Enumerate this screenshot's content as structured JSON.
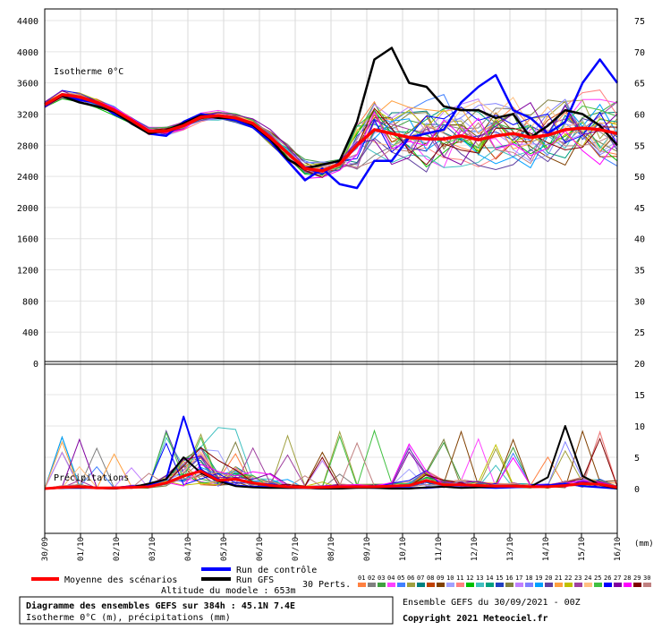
{
  "chart_data": {
    "type": "line",
    "title": "Diagramme des ensembles GEFS sur 384h : 45.1N 7.4E",
    "subtitle": "Isotherme 0°C (m), précipitations (mm)",
    "upper_panel_label": "Isotherme 0°C",
    "lower_panel_label": "Précipitations",
    "left_axis_ticks": [
      "4400",
      "4000",
      "3600",
      "3200",
      "2800",
      "2400",
      "2000",
      "1600",
      "1200",
      "800",
      "400",
      "0"
    ],
    "right_axis_ticks_upper": [
      "75",
      "70",
      "65",
      "60",
      "55",
      "50",
      "45",
      "40",
      "35",
      "30",
      "25",
      "20"
    ],
    "right_axis_ticks_lower": [
      "15",
      "10",
      "5",
      "0"
    ],
    "x_tick_labels": [
      "30/09",
      "01/10",
      "02/10",
      "03/10",
      "04/10",
      "05/10",
      "06/10",
      "07/10",
      "08/10",
      "09/10",
      "10/10",
      "11/10",
      "12/10",
      "13/10",
      "14/10",
      "15/10",
      "16/10"
    ],
    "x_unit": "(mm)",
    "ylim_isotherm": [
      0,
      4400
    ],
    "ylim_precip": [
      0,
      20
    ],
    "mean_isotherm": [
      3320,
      3450,
      3420,
      3350,
      3250,
      3120,
      2980,
      2980,
      3050,
      3160,
      3180,
      3150,
      3080,
      2900,
      2700,
      2500,
      2470,
      2560,
      2800,
      3000,
      2950,
      2900,
      2880,
      2880,
      2920,
      2870,
      2920,
      2950,
      2900,
      2930,
      3000,
      3020,
      3000,
      2950
    ],
    "control_isotherm": [
      3300,
      3450,
      3380,
      3350,
      3200,
      3100,
      2950,
      2920,
      3100,
      3200,
      3160,
      3120,
      3030,
      2850,
      2600,
      2350,
      2500,
      2300,
      2250,
      2600,
      2600,
      2900,
      2950,
      3000,
      3350,
      3550,
      3700,
      3250,
      3150,
      2950,
      3100,
      3600,
      3900,
      3600
    ],
    "gfs_isotherm": [
      3320,
      3430,
      3350,
      3300,
      3230,
      3080,
      2950,
      2990,
      3080,
      3180,
      3150,
      3150,
      3060,
      2880,
      2620,
      2500,
      2550,
      2600,
      3100,
      3900,
      4050,
      3600,
      3550,
      3300,
      3250,
      3250,
      3150,
      3200,
      2900,
      3050,
      3250,
      3200,
      3050,
      2800
    ],
    "mean_precip": [
      0,
      0.2,
      0.3,
      0.1,
      0.1,
      0.2,
      0.3,
      0.9,
      2.0,
      2.8,
      1.3,
      1.5,
      0.9,
      0.5,
      0.3,
      0.2,
      0.2,
      0.3,
      0.3,
      0.3,
      0.4,
      0.5,
      1.3,
      0.6,
      0.6,
      0.5,
      0.4,
      0.4,
      0.3,
      0.3,
      0.5,
      0.8,
      0.7,
      0.2
    ],
    "control_precip": [
      0,
      0.1,
      0.1,
      0.1,
      0,
      0.3,
      0.6,
      1.5,
      11.5,
      3.0,
      1.5,
      0.5,
      0.3,
      0.2,
      0.1,
      0.1,
      0,
      0.1,
      0.2,
      0.1,
      0.1,
      0.1,
      0.1,
      0.3,
      0.2,
      0.2,
      0.1,
      0.2,
      0.3,
      0.5,
      0.8,
      0.4,
      0.2,
      0
    ],
    "gfs_precip": [
      0,
      0.1,
      0.2,
      0.1,
      0,
      0.2,
      0.8,
      1.5,
      5.0,
      2.5,
      1.2,
      0.4,
      0.2,
      0.1,
      0.1,
      0.1,
      0,
      0,
      0.1,
      0.1,
      0,
      0,
      0.2,
      0.3,
      0.1,
      0.2,
      0.3,
      0.5,
      0.3,
      1.8,
      10.0,
      2.0,
      0.6,
      0
    ],
    "legend": {
      "mean": "Moyenne des scénarios",
      "control": "Run de contrôle",
      "gfs": "Run GFS",
      "perts_label": "30 Perts.",
      "perts": [
        "01",
        "02",
        "03",
        "04",
        "05",
        "06",
        "07",
        "08",
        "09",
        "10",
        "11",
        "12",
        "13",
        "14",
        "15",
        "16",
        "17",
        "18",
        "19",
        "20",
        "21",
        "22",
        "23",
        "24",
        "25",
        "26",
        "27",
        "28",
        "29",
        "30"
      ],
      "pert_colors": [
        "#ff8040",
        "#808080",
        "#40a040",
        "#ff40ff",
        "#4080ff",
        "#a0a040",
        "#008080",
        "#c04000",
        "#804000",
        "#a0a0ff",
        "#ff8080",
        "#00c000",
        "#40c0c0",
        "#00a080",
        "#2040c0",
        "#808040",
        "#c080ff",
        "#8080ff",
        "#00a0ff",
        "#6040a0",
        "#ffa040",
        "#c0c000",
        "#a040a0",
        "#ffc080",
        "#40c040",
        "#0000ff",
        "#8000a0",
        "#ff00ff",
        "#800000",
        "#c08080"
      ]
    },
    "colors": {
      "mean": "#ff0000",
      "control": "#0000ff",
      "gfs": "#000000"
    }
  },
  "footer": {
    "altitude": "Altitude du modele : 653m",
    "title_line": "Diagramme des ensembles GEFS sur 384h : 45.1N 7.4E",
    "subtitle_line": "Isotherme 0°C (m), précipitations (mm)",
    "run_info": "Ensemble GEFS du 30/09/2021 - 00Z",
    "copyright": "Copyright 2021 Meteociel.fr"
  }
}
